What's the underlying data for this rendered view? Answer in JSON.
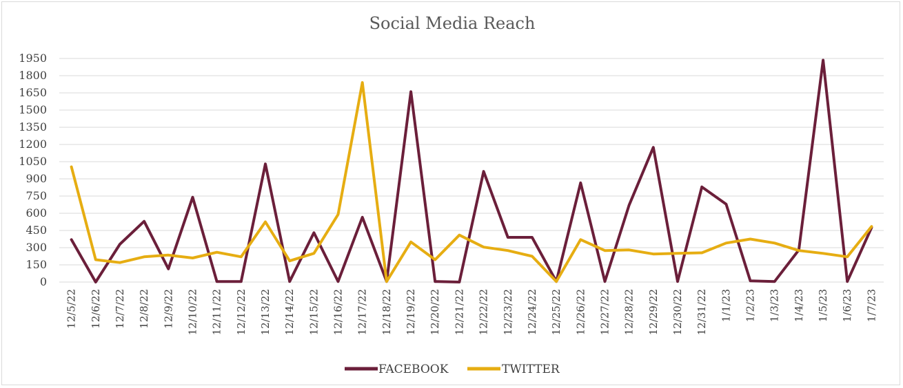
{
  "chart_data": {
    "type": "line",
    "title": "Social Media Reach",
    "xlabel": "",
    "ylabel": "",
    "ylim": [
      0,
      1950
    ],
    "yticks": [
      0,
      150,
      300,
      450,
      600,
      750,
      900,
      1050,
      1200,
      1350,
      1500,
      1650,
      1800,
      1950
    ],
    "yticklabels": [
      "0",
      "150",
      "300",
      "450",
      "600",
      "750",
      "900",
      "1050",
      "1200",
      "1350",
      "1500",
      "1650",
      "1800",
      "1950"
    ],
    "grid": true,
    "legend_position": "bottom",
    "categories": [
      "12/5/22",
      "12/6/22",
      "12/7/22",
      "12/8/22",
      "12/9/22",
      "12/10/22",
      "12/11/22",
      "12/12/22",
      "12/13/22",
      "12/14/22",
      "12/15/22",
      "12/16/22",
      "12/17/22",
      "12/18/22",
      "12/19/22",
      "12/20/22",
      "12/21/22",
      "12/22/22",
      "12/23/22",
      "12/24/22",
      "12/25/22",
      "12/26/22",
      "12/27/22",
      "12/28/22",
      "12/29/22",
      "12/30/22",
      "12/31/22",
      "1/1/23",
      "1/2/23",
      "1/3/23",
      "1/4/23",
      "1/5/23",
      "1/6/23",
      "1/7/23"
    ],
    "series": [
      {
        "name": "FACEBOOK",
        "color": "#6b1f3a",
        "values": [
          370,
          0,
          330,
          530,
          115,
          740,
          5,
          5,
          1030,
          5,
          430,
          5,
          565,
          5,
          1660,
          5,
          0,
          965,
          390,
          390,
          5,
          865,
          5,
          670,
          1175,
          5,
          830,
          680,
          10,
          5,
          280,
          1935,
          5,
          475
        ]
      },
      {
        "name": "TWITTER",
        "color": "#e6ad12",
        "values": [
          1005,
          195,
          170,
          220,
          235,
          210,
          260,
          220,
          525,
          185,
          250,
          590,
          1740,
          5,
          350,
          195,
          410,
          305,
          275,
          225,
          5,
          370,
          275,
          280,
          245,
          250,
          255,
          340,
          375,
          340,
          275,
          250,
          220,
          485
        ]
      }
    ]
  }
}
